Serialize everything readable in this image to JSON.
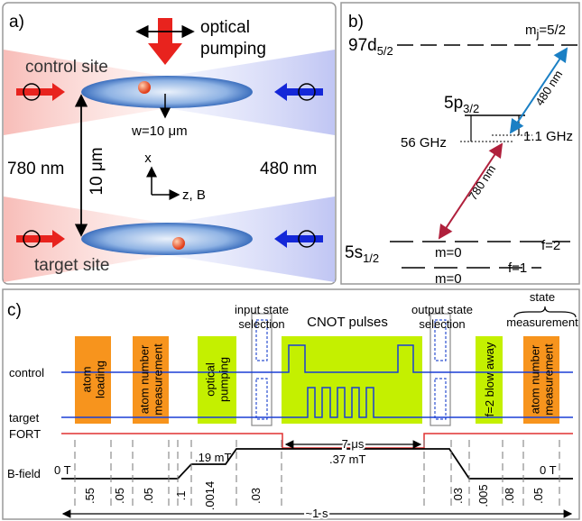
{
  "panel_a": {
    "label": "a)",
    "pump_label": [
      "optical",
      "pumping"
    ],
    "control_site": "control site",
    "waist": "w=10 μm",
    "left_wavelength": "780 nm",
    "spacing": "10 μm",
    "right_wavelength": "480 nm",
    "axis_x": "x",
    "axis_z": "z, B",
    "target_site": "target site"
  },
  "panel_b": {
    "label": "b)",
    "rydberg": {
      "main": "97d",
      "sub": "5/2"
    },
    "mj": {
      "main": "m",
      "sub": "j",
      "rest": "=5/2"
    },
    "p_state": {
      "main": "5p",
      "sub": "3/2"
    },
    "detuning_left": "56 GHz",
    "detuning_right": "1.1 GHz",
    "blue_laser": "480 nm",
    "red_laser": "780 nm",
    "ground": {
      "main": "5s",
      "sub": "1/2"
    },
    "m_upper": "m=0",
    "m_lower": "m=0",
    "f_upper": "f=2",
    "f_lower": "f=1"
  },
  "panel_c": {
    "label": "c)",
    "input_selection": [
      "input state",
      "selection"
    ],
    "cnot": "CNOT pulses",
    "output_selection": [
      "output state",
      "selection"
    ],
    "measurement": [
      "state",
      "measurement"
    ],
    "rows": [
      "control",
      "target",
      "FORT",
      "B-field"
    ],
    "boxes": [
      [
        "atom",
        "loading"
      ],
      [
        "atom number",
        "measurement"
      ],
      [
        "optical",
        "pumping"
      ],
      [
        "f=2 blow away"
      ],
      [
        "atom number",
        "measurement"
      ]
    ],
    "pulse_time": "7 μs",
    "field_low": ".19 mT",
    "field_high": ".37 mT",
    "field_zero": [
      "0 T",
      "0 T"
    ],
    "durations": [
      ".55",
      ".05",
      ".05",
      ".1",
      ".0014",
      ".03",
      ".03",
      ".005",
      ".08",
      ".05"
    ],
    "total": "~1 s"
  }
}
